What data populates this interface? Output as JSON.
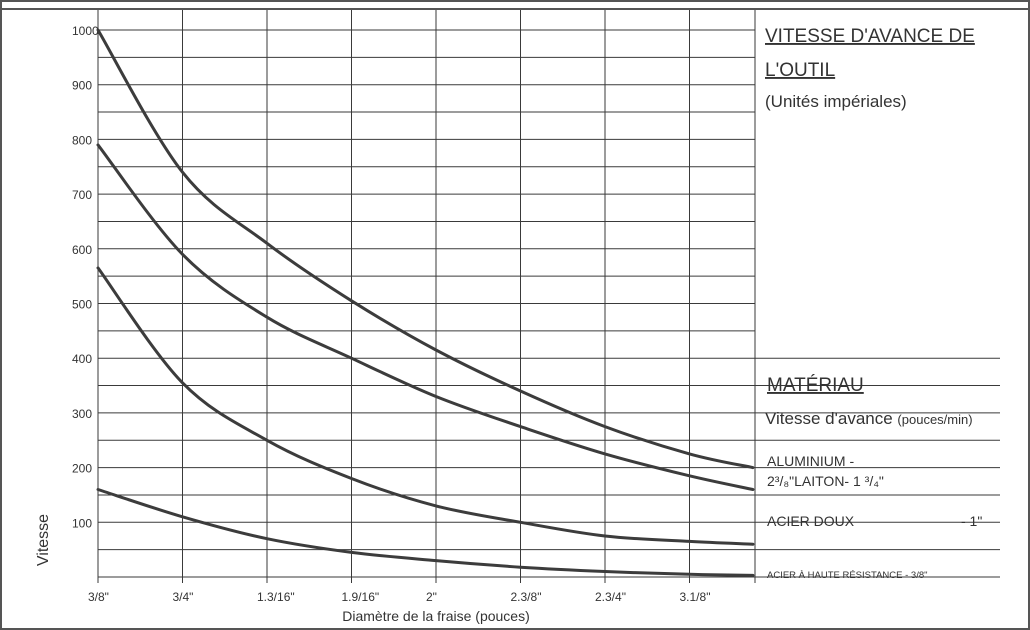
{
  "chart_data": {
    "type": "line",
    "title_lines": [
      "VITESSE D'AVANCE DE",
      "L'OUTIL"
    ],
    "subtitle": "(Unités impériales)",
    "xlabel": "Diamètre de la fraise (pouces)",
    "ylabel": "Vitesse",
    "x_categories": [
      "3/8\"",
      "3/4\"",
      "1.3/16\"",
      "1.9/16\"",
      "2\"",
      "2.3/8\"",
      "2.3/4\"",
      "3.1/8\""
    ],
    "y_ticks": [
      "1000",
      "900",
      "800",
      "700",
      "600",
      "500",
      "400",
      "300",
      "200",
      "100"
    ],
    "ylim": [
      0,
      1000
    ],
    "grid": true,
    "legend": {
      "heading": "MATÉRIAU",
      "subheading": "Vitesse d'avance",
      "subheading_unit": "(pouces/min)",
      "items": [
        {
          "line1": "ALUMINIUM -",
          "line2": "2³/₈\"LAITON- 1 ³/₄\""
        },
        {
          "text": "ACIER DOUX",
          "value": "- 1\""
        },
        {
          "text": "ACIER À HAUTE RÉSISTANCE - 3/8\""
        }
      ]
    },
    "series": [
      {
        "x": [
          0,
          1,
          2,
          3,
          4,
          5,
          6,
          7,
          7.75
        ],
        "values": [
          1000,
          740,
          610,
          505,
          415,
          340,
          275,
          225,
          200
        ]
      },
      {
        "x": [
          0,
          1,
          2,
          3,
          4,
          5,
          6,
          7,
          7.75
        ],
        "values": [
          790,
          590,
          475,
          400,
          330,
          275,
          225,
          185,
          160
        ]
      },
      {
        "x": [
          0,
          1,
          2,
          3,
          4,
          5,
          6,
          7,
          7.75
        ],
        "values": [
          565,
          355,
          250,
          180,
          130,
          100,
          75,
          65,
          60
        ]
      },
      {
        "x": [
          0,
          1,
          2,
          3,
          4,
          5,
          6,
          7,
          7.75
        ],
        "values": [
          160,
          110,
          70,
          45,
          30,
          18,
          10,
          5,
          3
        ]
      }
    ],
    "colors": {
      "line": "#3c3c3c",
      "grid": "#3a3a3a",
      "border": "#555555"
    }
  }
}
